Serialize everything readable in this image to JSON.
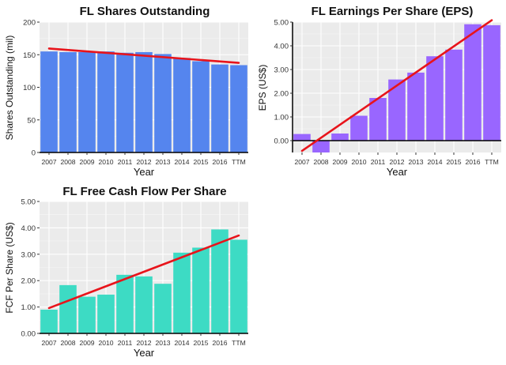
{
  "chart_data": [
    {
      "type": "bar",
      "title": "FL Shares Outstanding",
      "xlabel": "Year",
      "ylabel": "Shares Outstanding (mil)",
      "categories": [
        "2007",
        "2008",
        "2009",
        "2010",
        "2011",
        "2012",
        "2013",
        "2014",
        "2015",
        "2016",
        "TTM"
      ],
      "values": [
        155,
        154,
        154,
        155,
        153,
        154,
        151,
        145,
        140,
        135,
        134
      ],
      "ylim": [
        0,
        200
      ],
      "yticks": [
        0,
        50,
        100,
        150,
        200
      ],
      "ytick_labels": [
        "0",
        "50",
        "100",
        "150",
        "200"
      ],
      "trend": [
        159.5,
        137.5
      ],
      "bar_color": "#5585ee",
      "trend_color": "#e8141b",
      "grid": true
    },
    {
      "type": "bar",
      "title": "FL Earnings Per Share (EPS)",
      "xlabel": "Year",
      "ylabel": "EPS (US$)",
      "categories": [
        "2007",
        "2008",
        "2009",
        "2010",
        "2011",
        "2012",
        "2013",
        "2014",
        "2015",
        "2016",
        "TTM"
      ],
      "values": [
        0.28,
        -0.5,
        0.3,
        1.05,
        1.8,
        2.58,
        2.87,
        3.56,
        3.84,
        4.91,
        4.87
      ],
      "ylim": [
        -0.5,
        5.0
      ],
      "yticks": [
        0,
        1,
        2,
        3,
        4,
        5
      ],
      "ytick_labels": [
        "0.00",
        "1.00",
        "2.00",
        "3.00",
        "4.00",
        "5.00"
      ],
      "trend": [
        -0.43,
        5.08
      ],
      "bar_color": "#9966ff",
      "trend_color": "#e8141b",
      "zero_line": true,
      "grid": true
    },
    {
      "type": "bar",
      "title": "FL Free Cash Flow Per Share",
      "xlabel": "Year",
      "ylabel": "FCF Per Share (US$)",
      "categories": [
        "2007",
        "2008",
        "2009",
        "2010",
        "2011",
        "2012",
        "2013",
        "2014",
        "2015",
        "2016",
        "TTM"
      ],
      "values": [
        0.9,
        1.83,
        1.39,
        1.47,
        2.22,
        2.16,
        1.88,
        3.06,
        3.25,
        3.94,
        3.55
      ],
      "ylim": [
        0,
        5.0
      ],
      "yticks": [
        0,
        1,
        2,
        3,
        4,
        5
      ],
      "ytick_labels": [
        "0.00",
        "1.00",
        "2.00",
        "3.00",
        "4.00",
        "5.00"
      ],
      "trend": [
        0.96,
        3.71
      ],
      "bar_color": "#3ddbc4",
      "trend_color": "#e8141b",
      "grid": true
    }
  ]
}
